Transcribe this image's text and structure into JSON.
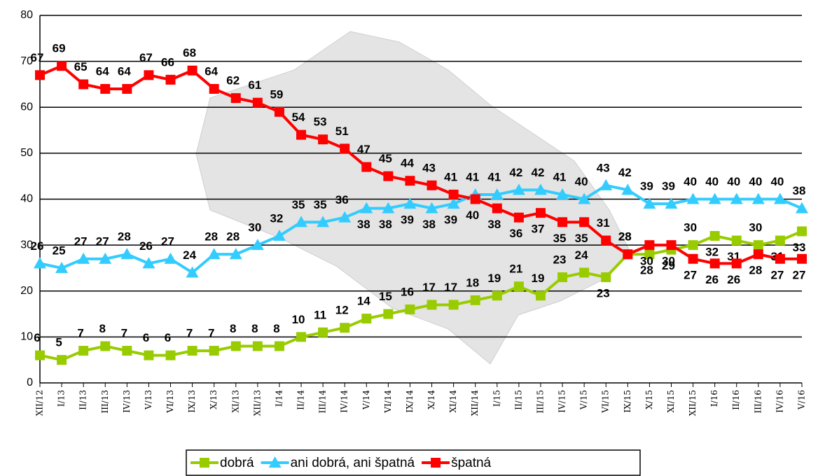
{
  "chart_data": {
    "type": "line",
    "categories": [
      "XII/12",
      "I/13",
      "II/13",
      "III/13",
      "IV/13",
      "V/13",
      "VI/13",
      "IX/13",
      "X/13",
      "XI/13",
      "XII/13",
      "I/14",
      "II/14",
      "III/14",
      "IV/14",
      "V/14",
      "VI/14",
      "IX/14",
      "X/14",
      "XI/14",
      "XII/14",
      "I/15",
      "II/15",
      "III/15",
      "IV/15",
      "V/15",
      "VI/15",
      "IX/15",
      "X/15",
      "XI/15",
      "XII/15",
      "I/16",
      "II/16",
      "III/16",
      "IV/16",
      "V/16"
    ],
    "series": [
      {
        "name": "dobrá",
        "color": "#99cc00",
        "marker": "square",
        "values": [
          6,
          5,
          7,
          8,
          7,
          6,
          6,
          7,
          7,
          8,
          8,
          8,
          10,
          11,
          12,
          14,
          15,
          16,
          17,
          17,
          18,
          19,
          21,
          19,
          23,
          24,
          23,
          28,
          28,
          29,
          30,
          32,
          31,
          30,
          31,
          33
        ]
      },
      {
        "name": "ani dobrá, ani špatná",
        "color": "#33ccff",
        "marker": "triangle",
        "values": [
          26,
          25,
          27,
          27,
          28,
          26,
          27,
          24,
          28,
          28,
          30,
          32,
          35,
          35,
          36,
          38,
          38,
          39,
          38,
          39,
          41,
          41,
          42,
          42,
          41,
          40,
          43,
          42,
          39,
          39,
          40,
          40,
          40,
          40,
          40,
          38
        ]
      },
      {
        "name": "špatná",
        "color": "#ff0000",
        "marker": "square",
        "values": [
          67,
          69,
          65,
          64,
          64,
          67,
          66,
          68,
          64,
          62,
          61,
          59,
          54,
          53,
          51,
          47,
          45,
          44,
          43,
          41,
          40,
          38,
          36,
          37,
          35,
          35,
          31,
          28,
          30,
          30,
          27,
          26,
          26,
          28,
          27,
          27
        ]
      }
    ],
    "ylim": [
      0,
      80
    ],
    "yticks": [
      0,
      10,
      20,
      30,
      40,
      50,
      60,
      70,
      80
    ],
    "grid": true,
    "legend": "bottom"
  }
}
